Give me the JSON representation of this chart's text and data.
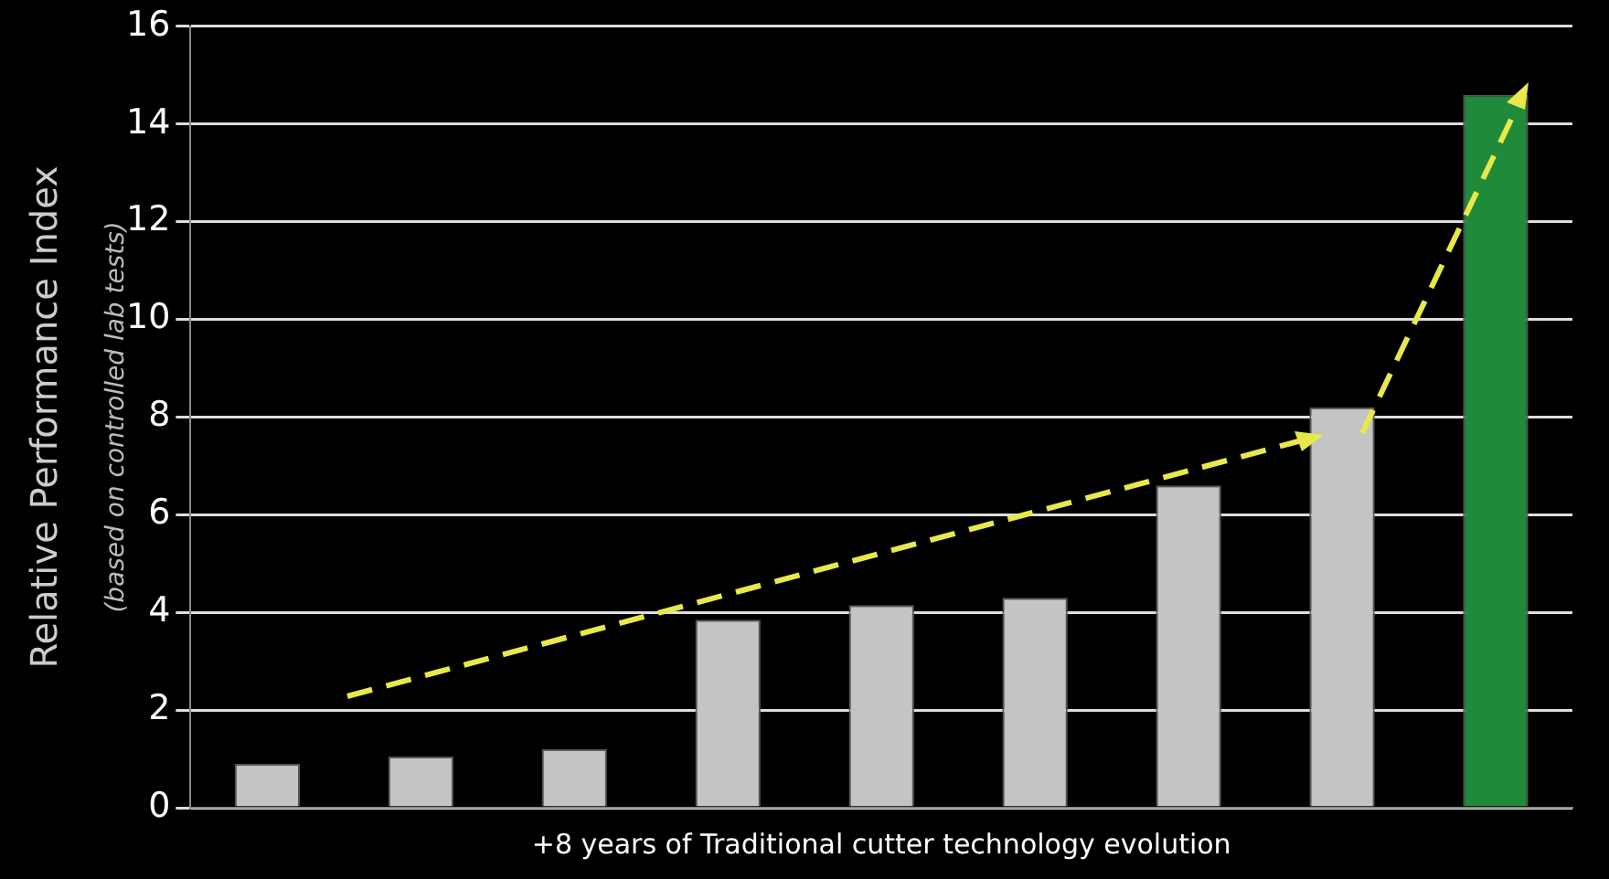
{
  "chart_data": {
    "type": "bar",
    "xlabel": "+8 years of Traditional cutter technology evolution",
    "ylabel": "Relative Performance Index",
    "annotations": [
      "(based on controlled lab tests)"
    ],
    "categories": [
      null,
      null,
      null,
      null,
      null,
      null,
      null,
      null,
      null
    ],
    "values": [
      0.9,
      1.05,
      1.2,
      3.85,
      4.15,
      4.3,
      6.6,
      8.2,
      14.6
    ],
    "colors": [
      "#c4c4c4",
      "#c4c4c4",
      "#c4c4c4",
      "#c4c4c4",
      "#c4c4c4",
      "#c4c4c4",
      "#c4c4c4",
      "#c4c4c4",
      "#1f8a3a"
    ],
    "ylim": [
      0,
      16
    ],
    "yticks": [
      0,
      2,
      4,
      6,
      8,
      10,
      12,
      14,
      16
    ],
    "grid": "y",
    "legend": false
  }
}
